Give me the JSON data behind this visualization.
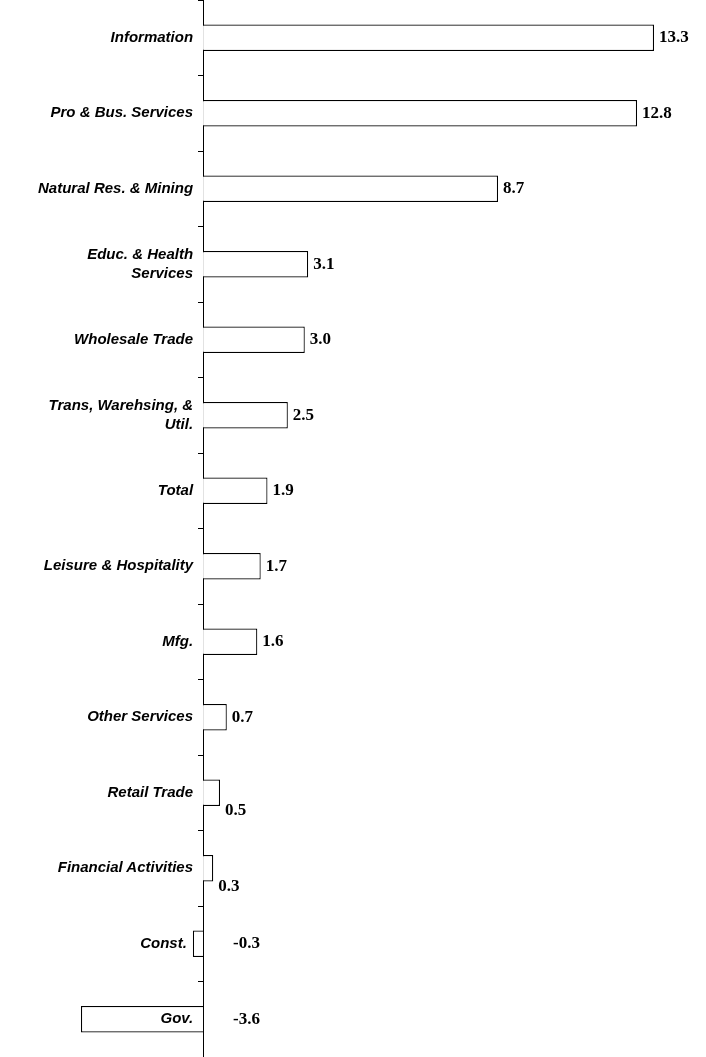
{
  "chart_data": {
    "type": "bar",
    "orientation": "horizontal",
    "categories": [
      "Information",
      "Pro & Bus. Services",
      "Natural Res. & Mining",
      "Educ. & Health Services",
      "Wholesale Trade",
      "Trans, Warehsing, & Util.",
      "Total",
      "Leisure & Hospitality",
      "Mfg.",
      "Other Services",
      "Retail Trade",
      "Financial Activities",
      "Const.",
      "Gov."
    ],
    "values": [
      13.3,
      12.8,
      8.7,
      3.1,
      3.0,
      2.5,
      1.9,
      1.7,
      1.6,
      0.7,
      0.5,
      0.3,
      -0.3,
      -3.6
    ],
    "color": "#ffffff",
    "xlim": [
      -3.6,
      13.3
    ],
    "value_labels": [
      "13.3",
      "12.8",
      "8.7",
      "3.1",
      "3.0",
      "2.5",
      "1.9",
      "1.7",
      "1.6",
      "0.7",
      "0.5",
      "0.3",
      "-0.3",
      "-3.6"
    ],
    "tick_labels": "y",
    "legend": false
  }
}
